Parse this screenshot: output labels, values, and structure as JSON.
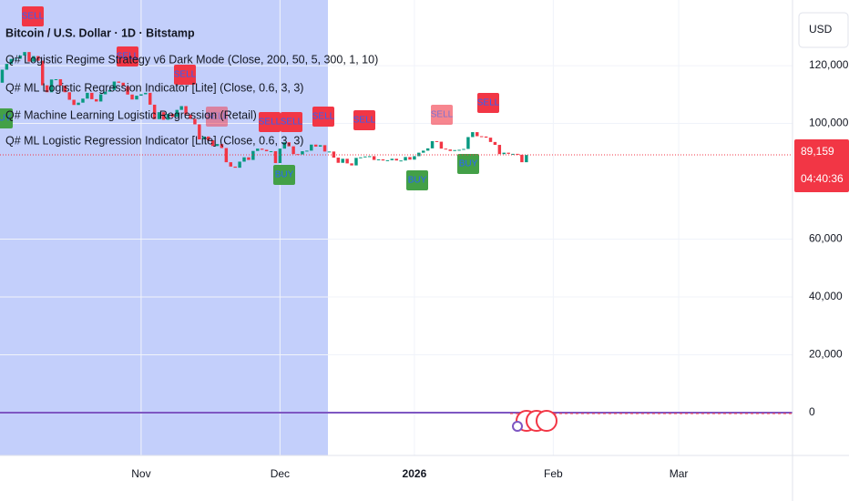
{
  "chart_data": {
    "type": "candlestick",
    "title": "Bitcoin / U.S. Dollar · 1D · Bitstamp",
    "indicators": [
      "Q# Logistic Regime Strategy v6 Dark Mode (Close, 200, 50, 5, 300, 1, 10)",
      "Q# ML Logistic Regression Indicator [Lite] (Close, 0.6, 3, 3)",
      "Q# Machine Learning Logistic Regression (Retail)",
      "Q# ML Logistic Regression Indicator [Lite] (Close, 0.6, 3, 3)"
    ],
    "currency": "USD",
    "last_price": {
      "value": 89159,
      "label": "89,159"
    },
    "countdown": "04:40:36",
    "signals": [
      "SELL",
      "SELL",
      "SELL",
      "SELL",
      "SELL",
      "SELL",
      "SELL",
      "SELL",
      "SELL",
      "SELL",
      "BUY",
      "BUY",
      "BUY",
      "BUY"
    ],
    "up_color": "#089981",
    "down_color": "#f23645",
    "open": [
      114100,
      118600,
      120600,
      122300,
      122400,
      123500,
      124700,
      121400,
      123300,
      121700,
      113200,
      110800,
      115200,
      115300,
      113100,
      110800,
      108200,
      106400,
      107200,
      108600,
      110600,
      108400,
      107600,
      110100,
      111000,
      111600,
      114500,
      114100,
      112900,
      110000,
      108300,
      109600,
      110100,
      110600,
      106500,
      101500,
      103900,
      101300,
      103300,
      102300,
      104700,
      106000,
      103100,
      101600,
      99700,
      94500,
      95500,
      94200,
      92200,
      92900,
      91500,
      86600,
      85100,
      84700,
      86800,
      88300,
      87400,
      90500,
      91300,
      90900,
      90400,
      90400,
      86300,
      91300,
      93500,
      92100,
      89400,
      89300,
      90400,
      90600,
      92700,
      92000,
      92500,
      90300,
      90300,
      88200,
      86400,
      87800,
      86200,
      85500,
      88100,
      88300,
      88600,
      88700,
      87400,
      87600,
      87200,
      87300,
      87800,
      87200,
      87200,
      88400,
      87500,
      88700,
      89900,
      90600,
      91400,
      93900,
      93700,
      91300,
      91000,
      90500,
      90800,
      90900,
      91200,
      95300,
      97000,
      95600,
      95500,
      95100,
      93600,
      92600,
      89400,
      89900,
      89500,
      89500,
      89200,
      86600
    ],
    "close": [
      118600,
      120600,
      122300,
      122400,
      123500,
      124700,
      121400,
      123300,
      121700,
      113200,
      110800,
      115200,
      115300,
      113100,
      110800,
      108200,
      106400,
      107200,
      108600,
      110600,
      108400,
      107600,
      110100,
      111000,
      111600,
      114500,
      114100,
      112900,
      110000,
      108300,
      109600,
      110100,
      110600,
      106500,
      101500,
      103900,
      101300,
      103300,
      102300,
      104700,
      106000,
      103100,
      101600,
      99700,
      94500,
      95500,
      94200,
      92200,
      92900,
      91500,
      86600,
      85100,
      84700,
      86800,
      88300,
      87400,
      90500,
      91300,
      90900,
      90400,
      90400,
      86300,
      91300,
      93500,
      92100,
      89400,
      89300,
      90400,
      90600,
      92700,
      92000,
      92500,
      90300,
      90300,
      88200,
      86400,
      87800,
      86200,
      85500,
      88100,
      88300,
      88600,
      88700,
      87400,
      87600,
      87200,
      87300,
      87800,
      87200,
      87200,
      88400,
      87500,
      88700,
      89900,
      90600,
      91400,
      93900,
      93700,
      91300,
      91000,
      90500,
      90800,
      90900,
      91200,
      95300,
      97000,
      95600,
      95500,
      95100,
      93600,
      92600,
      89400,
      89900,
      89500,
      89500,
      89200,
      86600,
      89100
    ],
    "xlim": [
      -0.5,
      176
    ],
    "xticks": [
      {
        "value": 31,
        "label": "Nov"
      },
      {
        "value": 62,
        "label": "Dec"
      },
      {
        "value": 92,
        "label": "2026"
      },
      {
        "value": 123,
        "label": "Feb"
      },
      {
        "value": 151,
        "label": "Mar"
      }
    ],
    "ylim": [
      -14800,
      142700
    ],
    "yticks": [
      0,
      {
        "value": 20000,
        "label": "20,000"
      },
      {
        "value": 40000,
        "label": "40,000"
      },
      {
        "value": 60000,
        "label": "60,000"
      },
      {
        "value": 100000,
        "label": "100,000"
      },
      {
        "value": 120000,
        "label": "120,000"
      }
    ],
    "grid": true
  }
}
